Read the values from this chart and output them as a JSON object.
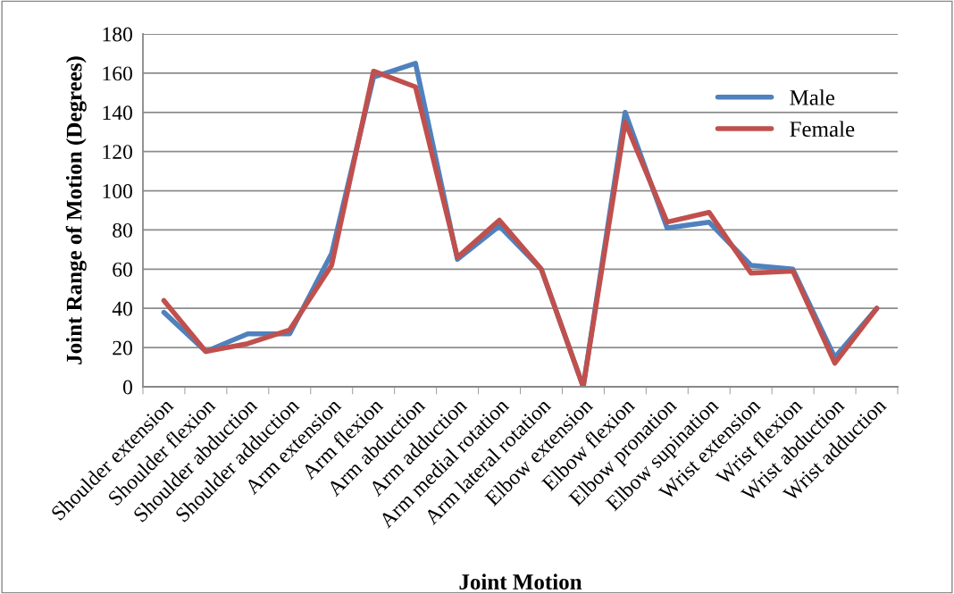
{
  "chart_data": {
    "type": "line",
    "xlabel": "Joint Motion",
    "ylabel": "Joint Range of Motion (Degrees)",
    "categories": [
      "Shoulder extension",
      "Shoulder flexion",
      "Shoulder abduction",
      "Shoulder adduction",
      "Arm extension",
      "Arm flexion",
      "Arm abduction",
      "Arm adduction",
      "Arm medial rotation",
      "Arm lateral rotation",
      "Elbow extension",
      "Elbow flexion",
      "Elbow pronation",
      "Elbow supination",
      "Wrist extension",
      "Wrist flexion",
      "Wrist abduction",
      "Wrist adduction"
    ],
    "series": [
      {
        "name": "Male",
        "color": "#4f81bd",
        "values": [
          38,
          18,
          27,
          27,
          68,
          158,
          165,
          65,
          82,
          60,
          0,
          140,
          81,
          84,
          62,
          60,
          15,
          40
        ]
      },
      {
        "name": "Female",
        "color": "#c0504d",
        "values": [
          44,
          18,
          22,
          29,
          62,
          161,
          153,
          66,
          85,
          60,
          0,
          135,
          84,
          89,
          58,
          59,
          12,
          40
        ]
      }
    ],
    "ylim": [
      0,
      180
    ],
    "yticks": [
      0,
      20,
      40,
      60,
      80,
      100,
      120,
      140,
      160,
      180
    ],
    "grid": "y",
    "legend": "top right",
    "marker": "none",
    "line_style": "solid"
  }
}
